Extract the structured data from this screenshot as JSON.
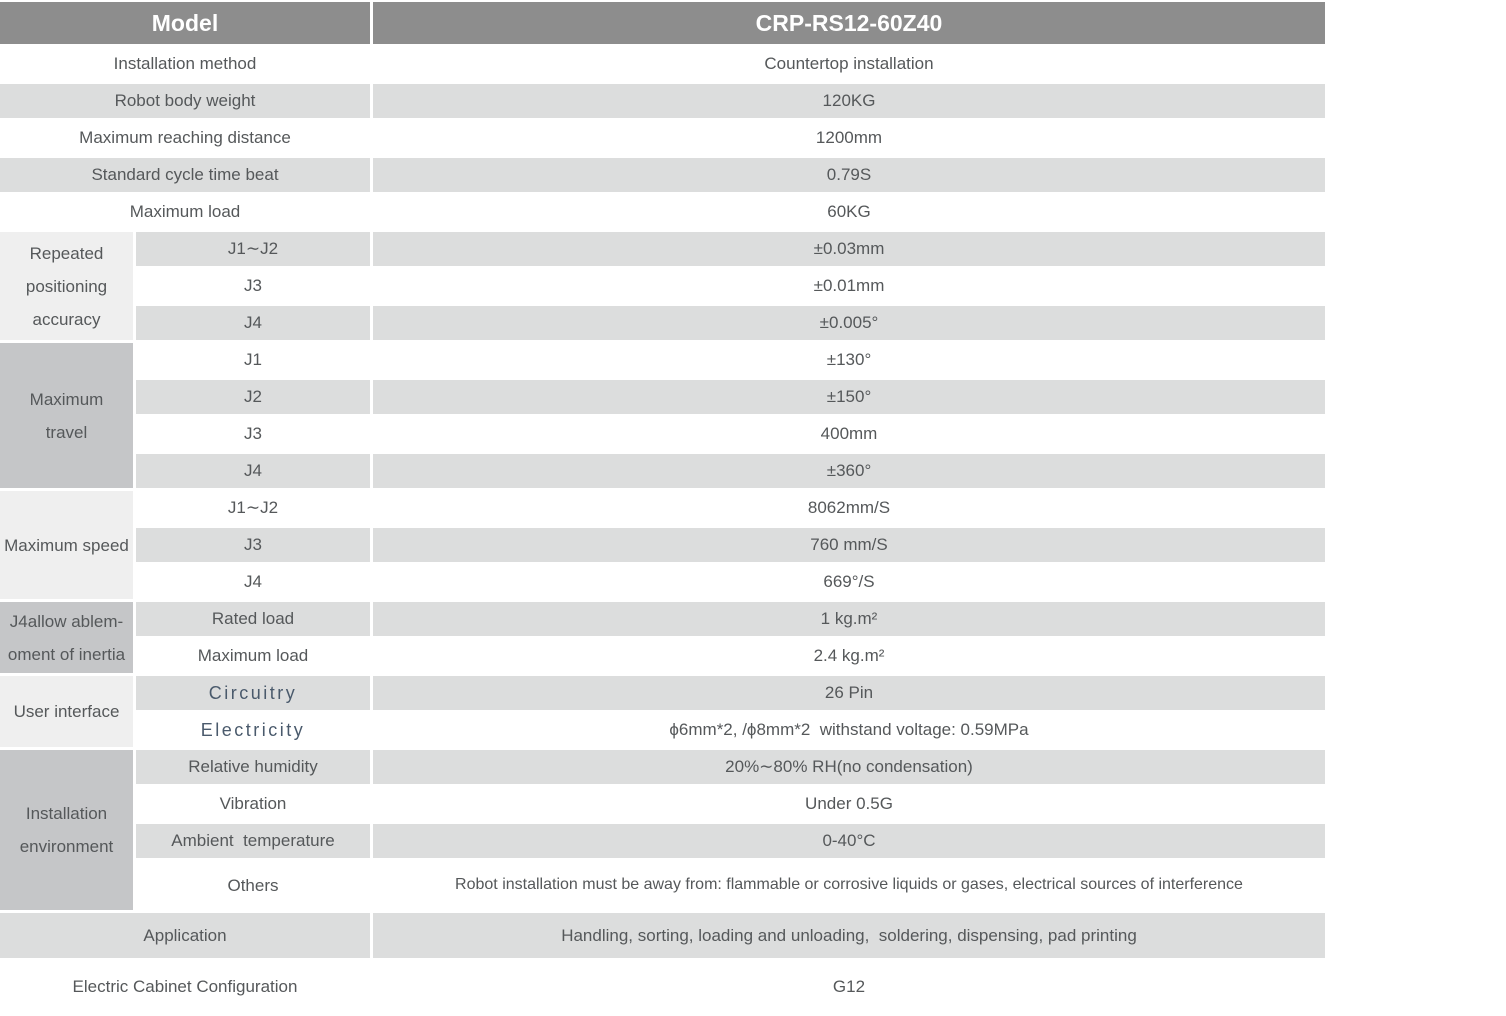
{
  "header": {
    "model_label": "Model",
    "model_value": "CRP-RS12-60Z40"
  },
  "rows_top": [
    {
      "label": "Installation method",
      "value": "Countertop installation"
    },
    {
      "label": "Robot body weight",
      "value": "120KG"
    },
    {
      "label": "Maximum reaching distance",
      "value": "1200mm"
    },
    {
      "label": "Standard cycle time beat",
      "value": "0.79S"
    },
    {
      "label": "Maximum load",
      "value": "60KG"
    }
  ],
  "groups": [
    {
      "title_lines": [
        "Repeated",
        "positioning",
        "accuracy"
      ],
      "rows": [
        {
          "label": "J1∼J2",
          "value": "±0.03mm"
        },
        {
          "label": "J3",
          "value": "±0.01mm"
        },
        {
          "label": "J4",
          "value": "±0.005°"
        }
      ]
    },
    {
      "title_lines": [
        "Maximum",
        "travel"
      ],
      "rows": [
        {
          "label": "J1",
          "value": "±130°"
        },
        {
          "label": "J2",
          "value": "±150°"
        },
        {
          "label": "J3",
          "value": "400mm"
        },
        {
          "label": "J4",
          "value": "±360°"
        }
      ]
    },
    {
      "title_lines": [
        "Maximum speed"
      ],
      "rows": [
        {
          "label": "J1∼J2",
          "value": "8062mm/S"
        },
        {
          "label": "J3",
          "value": "760 mm/S"
        },
        {
          "label": "J4",
          "value": "669°/S"
        }
      ]
    },
    {
      "title_lines": [
        "J4allow ablem-",
        "oment of inertia"
      ],
      "rows": [
        {
          "label": "Rated load",
          "value": "1 kg.m²"
        },
        {
          "label": "Maximum load",
          "value": "2.4 kg.m²"
        }
      ]
    },
    {
      "title_lines": [
        "User interface"
      ],
      "rows": [
        {
          "label": "Circuitry",
          "value": "26 Pin"
        },
        {
          "label": "Electricity",
          "value": "ϕ6mm*2, /ϕ8mm*2  withstand voltage: 0.59MPa"
        }
      ]
    },
    {
      "title_lines": [
        "Installation",
        "environment"
      ],
      "rows": [
        {
          "label": "Relative humidity",
          "value": "20%∼80% RH(no condensation)"
        },
        {
          "label": "Vibration",
          "value": "Under 0.5G"
        },
        {
          "label": "Ambient  temperature",
          "value": "0-40°C"
        },
        {
          "label": "Others",
          "value": "Robot installation must be away from: flammable or corrosive liquids or gases, electrical sources of interference"
        }
      ]
    }
  ],
  "bottom": [
    {
      "label": "Application",
      "value": "Handling, sorting, loading and unloading,  soldering, dispensing, pad printing"
    },
    {
      "label": "Electric Cabinet Configuration",
      "value": "G12"
    }
  ],
  "colors": {
    "header_bg": "#8d8d8d",
    "row_gray": "#dcdddd",
    "group_light": "#efefef",
    "group_dark": "#c5c6c8",
    "text": "#55585a",
    "accent_text": "#4a5a6c"
  }
}
